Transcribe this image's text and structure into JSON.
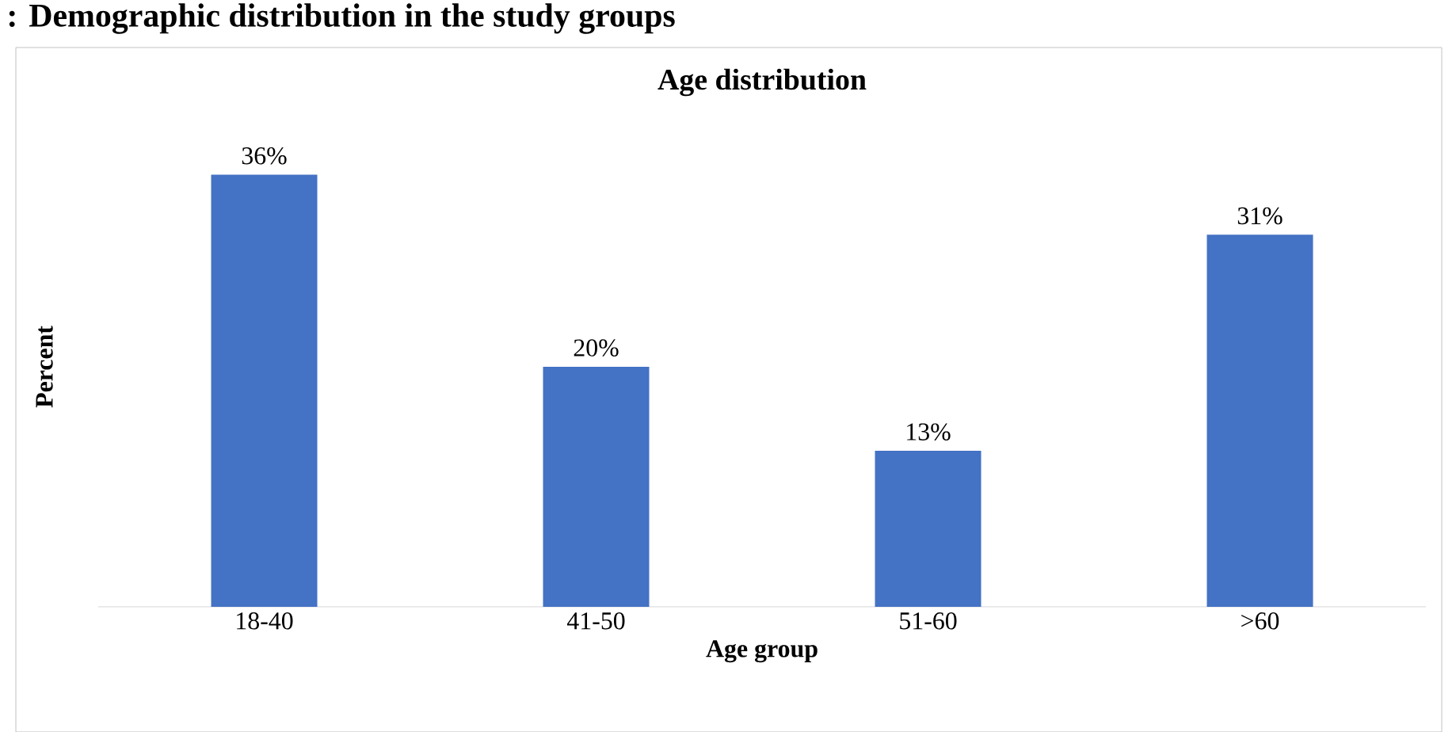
{
  "chart_data": {
    "type": "bar",
    "title": "Age distribution",
    "xlabel": "Age group",
    "ylabel": "Percent",
    "categories": [
      "18-40",
      "41-50",
      "51-60",
      ">60"
    ],
    "values": [
      36,
      20,
      13,
      31
    ],
    "value_labels": [
      "36%",
      "20%",
      "13%",
      "31%"
    ],
    "color": "#4472c4",
    "annotations": [
      ": Demographic distribution in the study groups"
    ]
  }
}
